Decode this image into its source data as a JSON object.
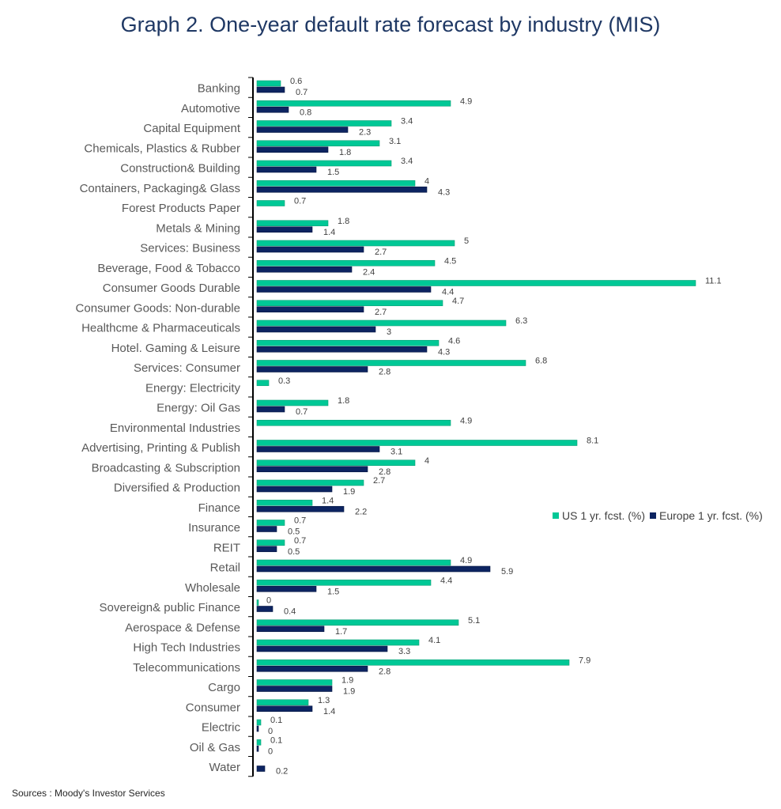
{
  "chart_data": {
    "type": "bar",
    "orientation": "horizontal",
    "title": "Graph 2. One-year default rate forecast by industry (MIS)",
    "xlabel": "",
    "ylabel": "",
    "xlim": [
      0,
      11.5
    ],
    "grid": false,
    "legend_position": "right",
    "categories": [
      "Banking",
      "Automotive",
      "Capital Equipment",
      "Chemicals, Plastics & Rubber",
      "Construction& Building",
      "Containers, Packaging& Glass",
      "Forest Products Paper",
      "Metals & Mining",
      "Services: Business",
      "Beverage, Food & Tobacco",
      "Consumer Goods Durable",
      "Consumer Goods: Non-durable",
      "Healthcme & Pharmaceuticals",
      "Hotel. Gaming & Leisure",
      "Services: Consumer",
      "Energy: Electricity",
      "Energy: Oil Gas",
      "Environmental Industries",
      "Advertising, Printing & Publish",
      "Broadcasting & Subscription",
      "Diversified & Production",
      "Finance",
      "Insurance",
      "REIT",
      "Retail",
      "Wholesale",
      "Sovereign& public Finance",
      "Aerospace & Defense",
      "High Tech Industries",
      "Telecommunications",
      "Cargo",
      "Consumer",
      "Electric",
      "Oil & Gas",
      "Water"
    ],
    "series": [
      {
        "name": "US 1 yr. fcst. (%)",
        "color": "#00c896",
        "values": [
          0.6,
          4.9,
          3.4,
          3.1,
          3.4,
          4,
          0.7,
          1.8,
          5,
          4.5,
          11.1,
          4.7,
          6.3,
          4.6,
          6.8,
          0.3,
          1.8,
          4.9,
          8.1,
          4,
          2.7,
          1.4,
          0.7,
          0.7,
          4.9,
          4.4,
          0,
          5.1,
          4.1,
          7.9,
          1.9,
          1.3,
          0.1,
          0.1,
          null
        ],
        "labels": [
          "0.6",
          "4.9",
          "3.4",
          "3.1",
          "3.4",
          "4",
          "0.7",
          "1.8",
          "5",
          "4.5",
          "11.1",
          "4.7",
          "6.3",
          "4.6",
          "6.8",
          "0.3",
          "1.8",
          "4.9",
          "8.1",
          "4",
          "2.7",
          "1.4",
          "0.7",
          "0.7",
          "4.9",
          "4.4",
          "0",
          "5.1",
          "4.1",
          "7.9",
          "1.9",
          "1.3",
          "0.1",
          "0.1",
          ""
        ]
      },
      {
        "name": "Europe 1 yr. fcst. (%)",
        "color": "#0d2461",
        "values": [
          0.7,
          0.8,
          2.3,
          1.8,
          1.5,
          4.3,
          null,
          1.4,
          2.7,
          2.4,
          4.4,
          2.7,
          3,
          4.3,
          2.8,
          null,
          0.7,
          null,
          3.1,
          2.8,
          1.9,
          2.2,
          0.5,
          0.5,
          5.9,
          1.5,
          0.4,
          1.7,
          3.3,
          2.8,
          1.9,
          1.4,
          0,
          0,
          0.2
        ],
        "labels": [
          "0.7",
          "0.8",
          "2.3",
          "1.8",
          "1.5",
          "4.3",
          "",
          "1.4",
          "2.7",
          "2.4",
          "4.4",
          "2.7",
          "3",
          "4.3",
          "2.8",
          "",
          "0.7",
          "",
          "3.1",
          "2.8",
          "1.9",
          "2.2",
          "0.5",
          "0.5",
          "5.9",
          "1.5",
          "0.4",
          "1.7",
          "3.3",
          "2.8",
          "1.9",
          "1.4",
          "0",
          "0",
          "0.2"
        ]
      }
    ]
  },
  "legend": {
    "us_label": "US 1 yr. fcst. (%)",
    "europe_label": "Europe 1 yr. fcst. (%)"
  },
  "source": "Sources : Moody's Investor Services"
}
